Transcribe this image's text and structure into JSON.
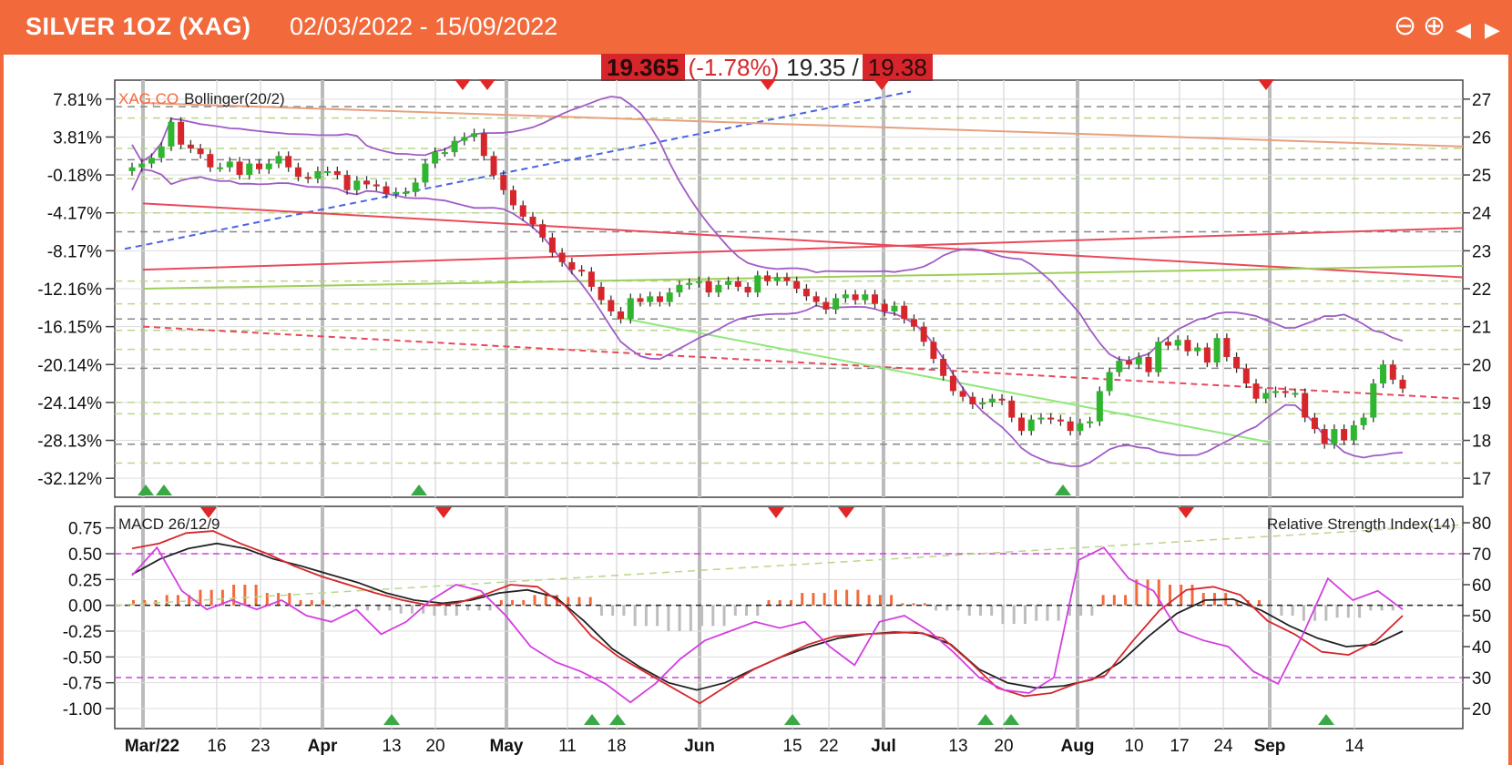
{
  "header": {
    "title": "SILVER 1OZ (XAG)",
    "date_range": "02/03/2022 - 15/09/2022",
    "controls": [
      "zoom-out",
      "zoom-in",
      "scroll-left",
      "scroll-right"
    ]
  },
  "quote": {
    "last": "19.365",
    "change": "(-1.78%)",
    "bid": "19.35 /",
    "ask": "19.38"
  },
  "colors": {
    "header": "#f26a3c",
    "up_candle": "#2fb52f",
    "down_candle": "#d6262b",
    "bollinger": "#a05cc6",
    "macd": "#d6262b",
    "signal": "#222222",
    "rsi": "#d33ee0",
    "histogram_pos": "#f26a3c",
    "histogram_neg": "#bdbdbd",
    "buy_marker": "#39a845",
    "sell_marker": "#e02626"
  },
  "chart_data": [
    {
      "type": "candlestick",
      "title": "XAG,CO",
      "indicator": "Bollinger(20/2)",
      "x_tick_labels": [
        "Mar/22",
        "16",
        "23",
        "Apr",
        "13",
        "20",
        "May",
        "11",
        "18",
        "Jun",
        "15",
        "22",
        "Jul",
        "13",
        "20",
        "Aug",
        "10",
        "17",
        "24",
        "Sep",
        "14"
      ],
      "x_tick_bold": [
        "Mar/22",
        "Apr",
        "May",
        "Jun",
        "Jul",
        "Aug",
        "Sep"
      ],
      "y_left_ticks": [
        "7.81%",
        "3.81%",
        "-0.18%",
        "-4.17%",
        "-8.17%",
        "-12.16%",
        "-16.15%",
        "-20.14%",
        "-24.14%",
        "-28.13%",
        "-32.12%"
      ],
      "y_right_ticks": [
        "27",
        "26",
        "25",
        "24",
        "23",
        "22",
        "21",
        "20",
        "19",
        "18",
        "17"
      ],
      "ylim": [
        16.5,
        27.5
      ],
      "close": [
        25.2,
        25.3,
        25.45,
        25.75,
        26.4,
        25.8,
        25.7,
        25.55,
        25.2,
        25.2,
        25.35,
        25.0,
        25.3,
        25.15,
        25.3,
        25.5,
        25.2,
        24.95,
        24.9,
        25.1,
        25.1,
        25.0,
        24.6,
        24.85,
        24.75,
        24.7,
        24.5,
        24.55,
        24.55,
        24.8,
        25.3,
        25.6,
        25.6,
        25.9,
        26.0,
        26.1,
        25.5,
        25.0,
        24.6,
        24.2,
        23.9,
        23.7,
        23.35,
        22.95,
        22.7,
        22.5,
        22.45,
        22.05,
        21.7,
        21.4,
        21.2,
        21.75,
        21.65,
        21.8,
        21.65,
        21.9,
        22.1,
        22.15,
        22.2,
        21.9,
        22.1,
        22.2,
        22.05,
        21.9,
        22.35,
        22.2,
        22.3,
        22.2,
        22.0,
        21.8,
        21.65,
        21.45,
        21.75,
        21.85,
        21.7,
        21.85,
        21.6,
        21.4,
        21.55,
        21.2,
        21.0,
        20.6,
        20.15,
        19.7,
        19.3,
        19.15,
        18.95,
        19.0,
        19.1,
        19.05,
        18.6,
        18.25,
        18.55,
        18.6,
        18.55,
        18.5,
        18.25,
        18.45,
        18.5,
        19.3,
        19.8,
        20.1,
        20.0,
        20.2,
        19.8,
        20.6,
        20.5,
        20.65,
        20.35,
        20.45,
        20.05,
        20.7,
        20.2,
        19.9,
        19.5,
        19.1,
        19.25,
        19.3,
        19.25,
        19.25,
        18.6,
        18.3,
        17.9,
        18.3,
        18.0,
        18.4,
        18.6,
        19.5,
        20.0,
        19.6,
        19.365
      ],
      "trendlines": [
        {
          "name": "blue dashed support",
          "points": [
            [
              "Mar/22",
              23.05
            ],
            [
              "Jul",
              27.2
            ]
          ]
        },
        {
          "name": "upper falling resistance",
          "points": [
            [
              "Mar/22",
              26.9
            ],
            [
              "14",
              25.75
            ]
          ]
        },
        {
          "name": "red falling",
          "points": [
            [
              "Mar/22",
              24.25
            ],
            [
              "14",
              22.3
            ]
          ]
        },
        {
          "name": "red rising",
          "points": [
            [
              "Mar/22",
              22.5
            ],
            [
              "14",
              23.6
            ]
          ]
        },
        {
          "name": "olive rising",
          "points": [
            [
              "Mar/22",
              22.0
            ],
            [
              "14",
              22.6
            ]
          ]
        },
        {
          "name": "red dashed falling",
          "points": [
            [
              "Mar/22",
              21.0
            ],
            [
              "14",
              19.1
            ]
          ]
        },
        {
          "name": "green support",
          "points": [
            [
              "18",
              21.25
            ],
            [
              "Sep",
              17.95
            ]
          ]
        }
      ],
      "horizontal_levels": [
        26.8,
        26.5,
        25.7,
        25.4,
        24.9,
        24.0,
        23.5,
        22.2,
        21.6,
        21.2,
        20.9,
        20.4,
        19.9,
        19.0,
        18.7,
        17.9,
        17.4
      ],
      "buy_markers": [
        "Mar/22",
        "16",
        "20",
        "Aug"
      ],
      "sell_markers": [
        "23",
        "30",
        "15",
        "Jul",
        "Sep"
      ]
    },
    {
      "type": "line",
      "title": "MACD 26/12/9",
      "right_title": "Relative Strength Index(14)",
      "y_left_ticks": [
        "0.75",
        "0.50",
        "0.25",
        "0.00",
        "-0.25",
        "-0.50",
        "-0.75",
        "-1.00"
      ],
      "y_right_ticks": [
        "80",
        "70",
        "60",
        "50",
        "40",
        "30",
        "20"
      ],
      "ylim": [
        -1.0,
        0.8
      ],
      "rsi_levels": [
        70,
        30
      ],
      "series": [
        {
          "name": "MACD",
          "values": [
            0.55,
            0.6,
            0.7,
            0.72,
            0.6,
            0.5,
            0.38,
            0.28,
            0.2,
            0.12,
            0.05,
            0.0,
            0.02,
            0.1,
            0.2,
            0.18,
            0.0,
            -0.3,
            -0.5,
            -0.65,
            -0.8,
            -0.95,
            -0.78,
            -0.62,
            -0.5,
            -0.38,
            -0.3,
            -0.28,
            -0.27,
            -0.26,
            -0.32,
            -0.55,
            -0.8,
            -0.88,
            -0.85,
            -0.75,
            -0.68,
            -0.35,
            -0.05,
            0.15,
            0.18,
            0.1,
            -0.15,
            -0.28,
            -0.45,
            -0.48,
            -0.35,
            -0.1
          ]
        },
        {
          "name": "Signal",
          "values": [
            0.3,
            0.45,
            0.55,
            0.6,
            0.55,
            0.45,
            0.38,
            0.3,
            0.22,
            0.12,
            0.05,
            0.02,
            0.05,
            0.12,
            0.15,
            0.08,
            -0.15,
            -0.42,
            -0.6,
            -0.75,
            -0.82,
            -0.75,
            -0.62,
            -0.5,
            -0.4,
            -0.32,
            -0.28,
            -0.26,
            -0.27,
            -0.38,
            -0.62,
            -0.75,
            -0.8,
            -0.78,
            -0.72,
            -0.55,
            -0.3,
            -0.08,
            0.05,
            0.06,
            -0.05,
            -0.2,
            -0.32,
            -0.4,
            -0.38,
            -0.25
          ]
        },
        {
          "name": "RSI",
          "values": [
            63,
            72,
            58,
            52,
            55,
            52,
            55,
            50,
            48,
            52,
            44,
            48,
            55,
            60,
            58,
            50,
            40,
            35,
            32,
            28,
            22,
            28,
            36,
            42,
            45,
            48,
            46,
            48,
            40,
            34,
            48,
            50,
            45,
            38,
            30,
            26,
            25,
            30,
            68,
            72,
            62,
            58,
            45,
            42,
            40,
            32,
            28,
            44,
            62,
            55,
            58,
            52
          ]
        }
      ],
      "histogram": [
        0.05,
        0.1,
        0.15,
        0.2,
        0.12,
        0.05,
        -0.02,
        -0.05,
        -0.08,
        -0.1,
        -0.05,
        0.05,
        0.1,
        0.08,
        -0.1,
        -0.2,
        -0.25,
        -0.2,
        -0.1,
        0.05,
        0.12,
        0.15,
        0.1,
        0.02,
        -0.05,
        -0.1,
        -0.18,
        -0.15,
        -0.1,
        0.1,
        0.25,
        0.2,
        0.12,
        0.05,
        -0.1,
        -0.15,
        -0.12,
        -0.05
      ],
      "buy_markers": [
        "13",
        "11",
        "18",
        "15",
        "17",
        "20",
        "14"
      ],
      "sell_markers": [
        "16",
        "20",
        "15",
        "22",
        "17"
      ]
    }
  ]
}
